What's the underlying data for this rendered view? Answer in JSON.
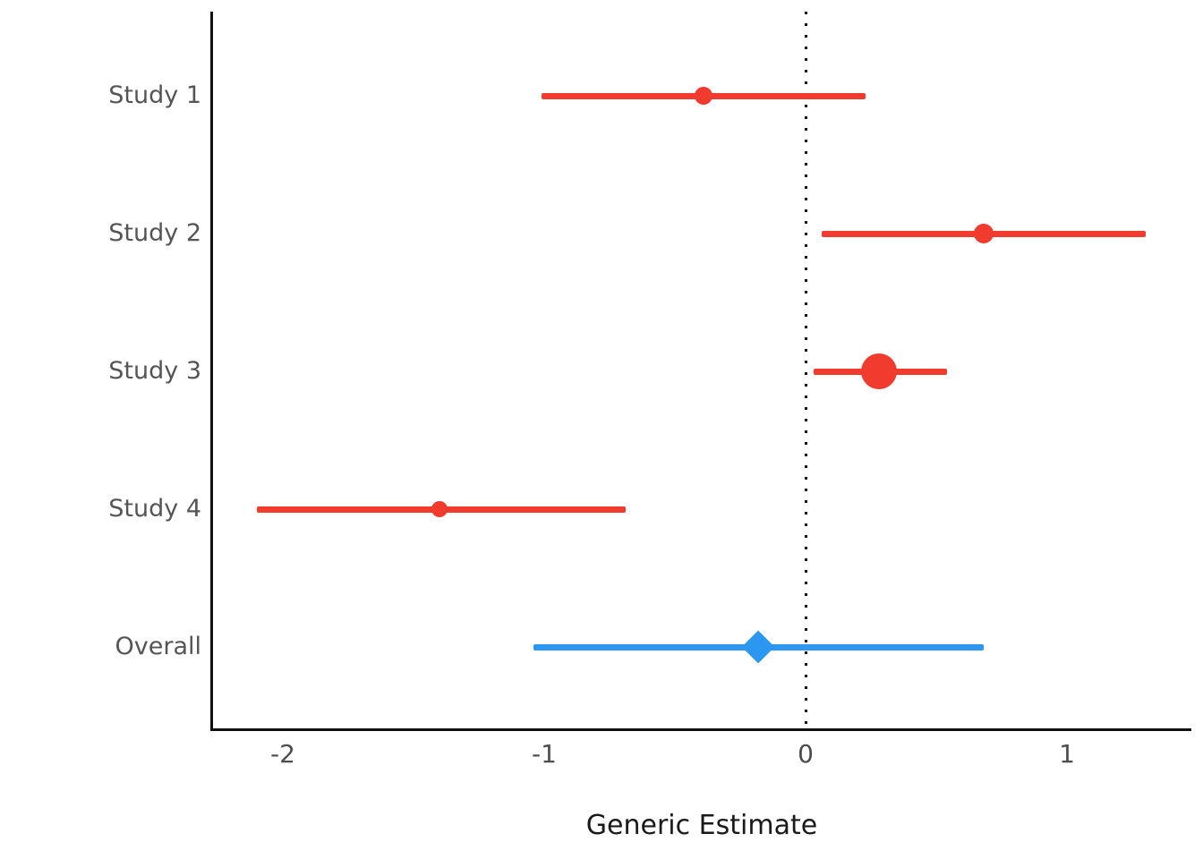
{
  "chart_data": {
    "type": "scatter",
    "subtype": "forest-plot",
    "orientation": "horizontal",
    "title": "",
    "xlabel": "Generic Estimate",
    "ylabel": "",
    "x_ticks": [
      -2,
      -1,
      0,
      1
    ],
    "x_tick_labels": [
      "-2",
      "-1",
      "0",
      "1"
    ],
    "xlim": [
      -2.28,
      1.48
    ],
    "grid": false,
    "legend": false,
    "reference_line": {
      "x": 0,
      "style": "dotted",
      "color": "#111111"
    },
    "categories": [
      "Study 1",
      "Study 2",
      "Study 3",
      "Study 4",
      "Overall"
    ],
    "rows": [
      {
        "label": "Study 1",
        "estimate": -0.39,
        "ci_low": -1.01,
        "ci_high": 0.23,
        "marker": "circle",
        "marker_size": 20,
        "color": "#f03b2e"
      },
      {
        "label": "Study 2",
        "estimate": 0.68,
        "ci_low": 0.06,
        "ci_high": 1.3,
        "marker": "circle",
        "marker_size": 22,
        "color": "#f03b2e"
      },
      {
        "label": "Study 3",
        "estimate": 0.28,
        "ci_low": 0.03,
        "ci_high": 0.54,
        "marker": "circle",
        "marker_size": 40,
        "color": "#f03b2e"
      },
      {
        "label": "Study 4",
        "estimate": -1.4,
        "ci_low": -2.1,
        "ci_high": -0.69,
        "marker": "circle",
        "marker_size": 18,
        "color": "#f03b2e"
      },
      {
        "label": "Overall",
        "estimate": -0.18,
        "ci_low": -1.04,
        "ci_high": 0.68,
        "marker": "diamond",
        "marker_size": 37,
        "color": "#2b97f0"
      }
    ],
    "colors": {
      "study_series": "#f03b2e",
      "overall_series": "#2b97f0",
      "axis": "#111111",
      "tick_label": "#4d4d4d",
      "category_label": "#555555",
      "axis_title": "#1a1a1a",
      "background": "#ffffff"
    }
  }
}
